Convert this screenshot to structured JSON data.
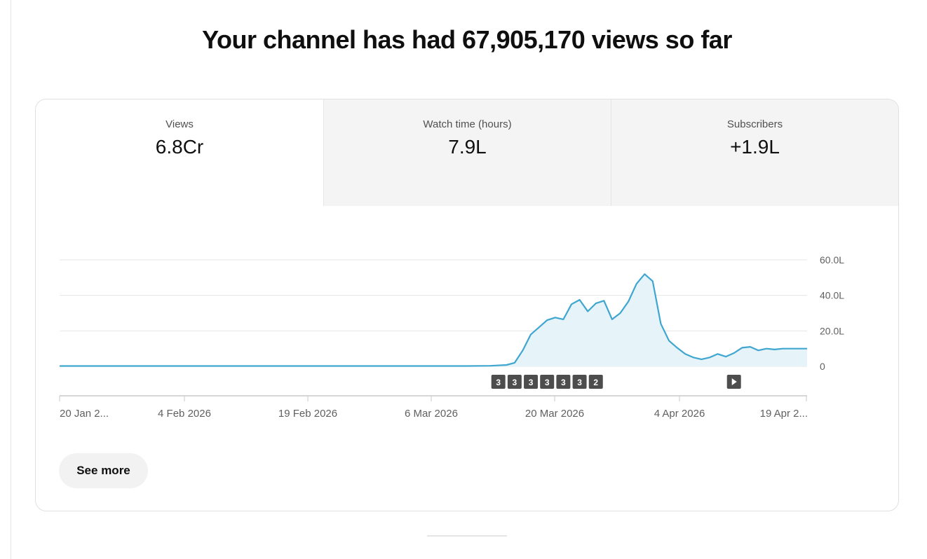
{
  "headline": "Your channel has had 67,905,170 views so far",
  "tabs": [
    {
      "label": "Views",
      "value": "6.8Cr",
      "active": true
    },
    {
      "label": "Watch time (hours)",
      "value": "7.9L",
      "active": false
    },
    {
      "label": "Subscribers",
      "value": "+1.9L",
      "active": false
    }
  ],
  "see_more_label": "See more",
  "colors": {
    "line": "#3ea6cf",
    "fill": "#e6f3f9",
    "marker_bg": "#4d4d4d",
    "marker_text": "#ffffff",
    "grid": "#e5e5e5",
    "axis_text": "#606060"
  },
  "chart_data": {
    "type": "area",
    "title": "",
    "xlabel": "",
    "ylabel": "",
    "x_tick_labels": [
      "20 Jan 2...",
      "4 Feb 2026",
      "19 Feb 2026",
      "6 Mar 2026",
      "20 Mar 2026",
      "4 Apr 2026",
      "19 Apr 2..."
    ],
    "y_tick_labels": [
      "0",
      "20.0L",
      "40.0L",
      "60.0L"
    ],
    "y_ticks": [
      0,
      20,
      40,
      60
    ],
    "ylim": [
      0,
      60
    ],
    "y_unit": "L",
    "x_range": [
      "2026-01-20",
      "2026-04-22"
    ],
    "grid": true,
    "series": [
      {
        "x": [
          "2026-01-20",
          "2026-02-01",
          "2026-02-15",
          "2026-03-01",
          "2026-03-11",
          "2026-03-14",
          "2026-03-16",
          "2026-03-17",
          "2026-03-18",
          "2026-03-19",
          "2026-03-20",
          "2026-03-21",
          "2026-03-22",
          "2026-03-23",
          "2026-03-24",
          "2026-03-25",
          "2026-03-26",
          "2026-03-27",
          "2026-03-28",
          "2026-03-29",
          "2026-03-30",
          "2026-03-31",
          "2026-04-01",
          "2026-04-02",
          "2026-04-03",
          "2026-04-04",
          "2026-04-05",
          "2026-04-06",
          "2026-04-07",
          "2026-04-08",
          "2026-04-09",
          "2026-04-10",
          "2026-04-11",
          "2026-04-12",
          "2026-04-13",
          "2026-04-14",
          "2026-04-15",
          "2026-04-16",
          "2026-04-17",
          "2026-04-18",
          "2026-04-19",
          "2026-04-20",
          "2026-04-21",
          "2026-04-22"
        ],
        "values": [
          0.2,
          0.2,
          0.2,
          0.2,
          0.2,
          0.3,
          0.8,
          2.0,
          9.0,
          18.0,
          22.0,
          26.0,
          27.5,
          26.5,
          35.0,
          37.5,
          31.0,
          35.5,
          37.0,
          26.5,
          30.0,
          36.5,
          46.5,
          52.0,
          48.0,
          24.0,
          14.5,
          10.5,
          7.0,
          5.0,
          4.0,
          5.0,
          7.0,
          5.5,
          7.5,
          10.5,
          11.0,
          9.0,
          10.0,
          9.5,
          10.0,
          10.0,
          10.0,
          10.0
        ]
      }
    ],
    "annotations": [
      {
        "x": "2026-03-15",
        "label": "3"
      },
      {
        "x": "2026-03-17",
        "label": "3"
      },
      {
        "x": "2026-03-19",
        "label": "3"
      },
      {
        "x": "2026-03-21",
        "label": "3"
      },
      {
        "x": "2026-03-23",
        "label": "3"
      },
      {
        "x": "2026-03-25",
        "label": "3"
      },
      {
        "x": "2026-03-27",
        "label": "2"
      },
      {
        "x": "2026-04-13",
        "label": "play"
      }
    ]
  }
}
